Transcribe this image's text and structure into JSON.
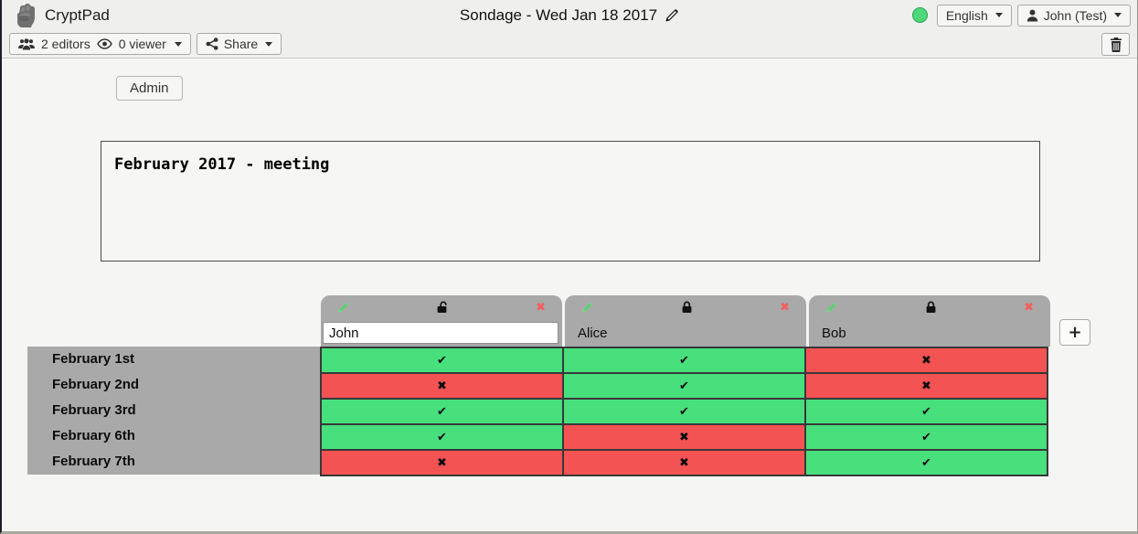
{
  "topbar": {
    "app_name": "CryptPad",
    "title": "Sondage - Wed Jan 18 2017",
    "language_label": "English",
    "user_label": "John (Test)"
  },
  "toolbar": {
    "editors_label": "2 editors",
    "viewers_label": "0 viewer",
    "share_label": "Share"
  },
  "content": {
    "admin_label": "Admin",
    "description": "February 2017 - meeting",
    "add_column_label": "+"
  },
  "poll": {
    "columns": [
      {
        "name": "John",
        "locked": false,
        "editable": true
      },
      {
        "name": "Alice",
        "locked": true,
        "editable": false
      },
      {
        "name": "Bob",
        "locked": true,
        "editable": false
      }
    ],
    "rows": [
      "February 1st",
      "February 2nd",
      "February 3rd",
      "February 6th",
      "February 7th"
    ],
    "votes": [
      [
        1,
        1,
        0
      ],
      [
        0,
        1,
        0
      ],
      [
        1,
        1,
        1
      ],
      [
        1,
        0,
        1
      ],
      [
        0,
        0,
        1
      ]
    ],
    "yes_symbol": "✔",
    "no_symbol": "✖",
    "remove_symbol": "✖",
    "colors": {
      "yes": "#48df7d",
      "no": "#f45353",
      "header_gray": "#a9a9a9"
    }
  }
}
